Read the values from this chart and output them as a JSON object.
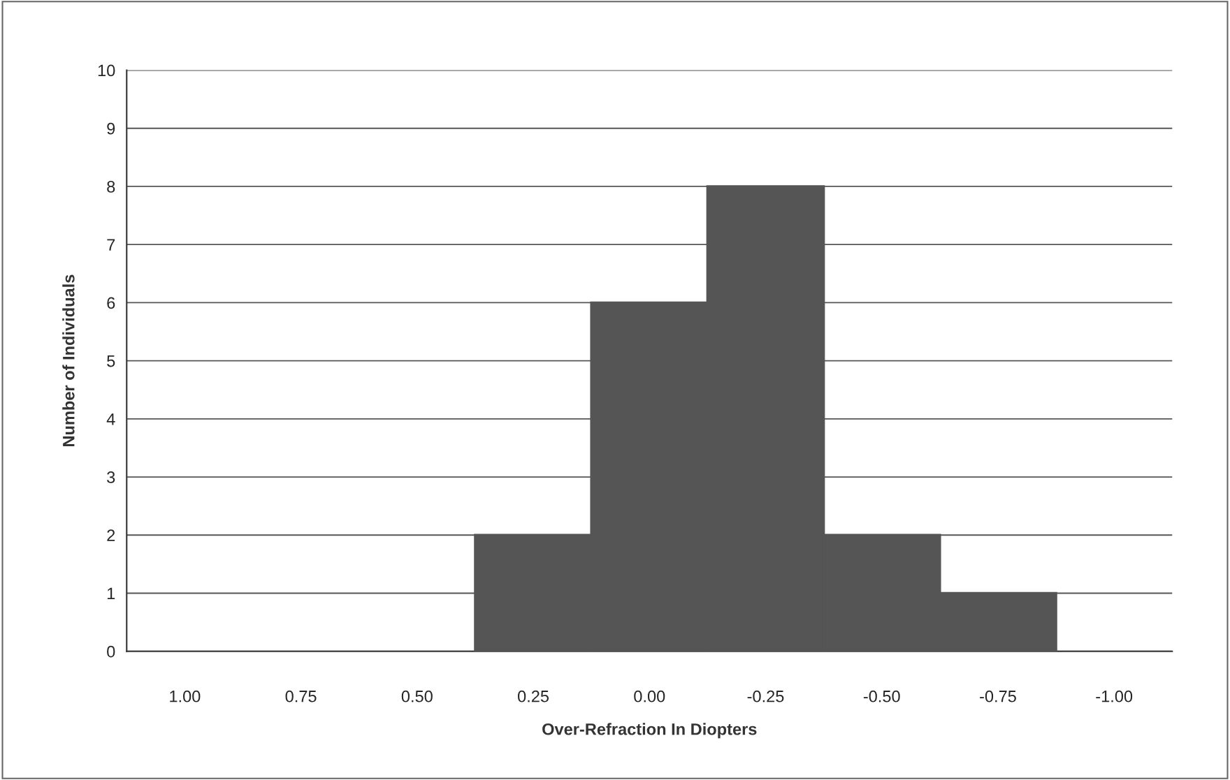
{
  "chart_data": {
    "type": "bar",
    "xlabel": "Over-Refraction In Diopters",
    "ylabel": "Number of Individuals",
    "categories": [
      "1.00",
      "0.75",
      "0.50",
      "0.25",
      "0.00",
      "-0.25",
      "-0.50",
      "-0.75",
      "-1.00"
    ],
    "values": [
      0,
      0,
      0,
      2,
      6,
      8,
      2,
      1,
      0
    ],
    "color": "#555555",
    "ylim": [
      0,
      10
    ],
    "yticks": [
      0,
      1,
      2,
      3,
      4,
      5,
      6,
      7,
      8,
      9,
      10
    ],
    "grid": "y",
    "legend": false
  }
}
